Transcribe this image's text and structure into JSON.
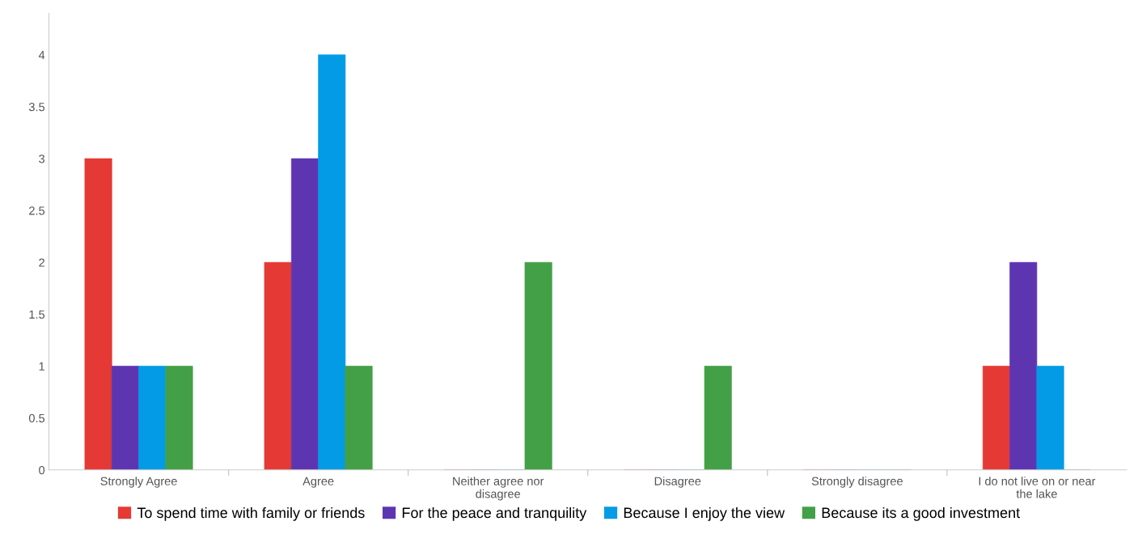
{
  "chart_data": {
    "type": "bar",
    "categories": [
      "Strongly Agree",
      "Agree",
      "Neither agree nor\ndisagree",
      "Disagree",
      "Strongly disagree",
      "I do not live on or near\nthe lake"
    ],
    "series": [
      {
        "name": "To spend time with family or friends",
        "color": "#e53935",
        "values": [
          3,
          2,
          0,
          0,
          0,
          1
        ]
      },
      {
        "name": "For the peace and tranquility",
        "color": "#5e35b1",
        "values": [
          1,
          3,
          0,
          0,
          0,
          2
        ]
      },
      {
        "name": "Because I enjoy the view",
        "color": "#039be5",
        "values": [
          1,
          4,
          0,
          0,
          0,
          1
        ]
      },
      {
        "name": "Because its a good investment",
        "color": "#43a047",
        "values": [
          1,
          1,
          2,
          1,
          0,
          0
        ]
      }
    ],
    "ylim": [
      0,
      4.4
    ],
    "yticks": [
      0,
      0.5,
      1,
      1.5,
      2,
      2.5,
      3,
      3.5,
      4
    ],
    "grid": false,
    "legend": "bottom"
  }
}
